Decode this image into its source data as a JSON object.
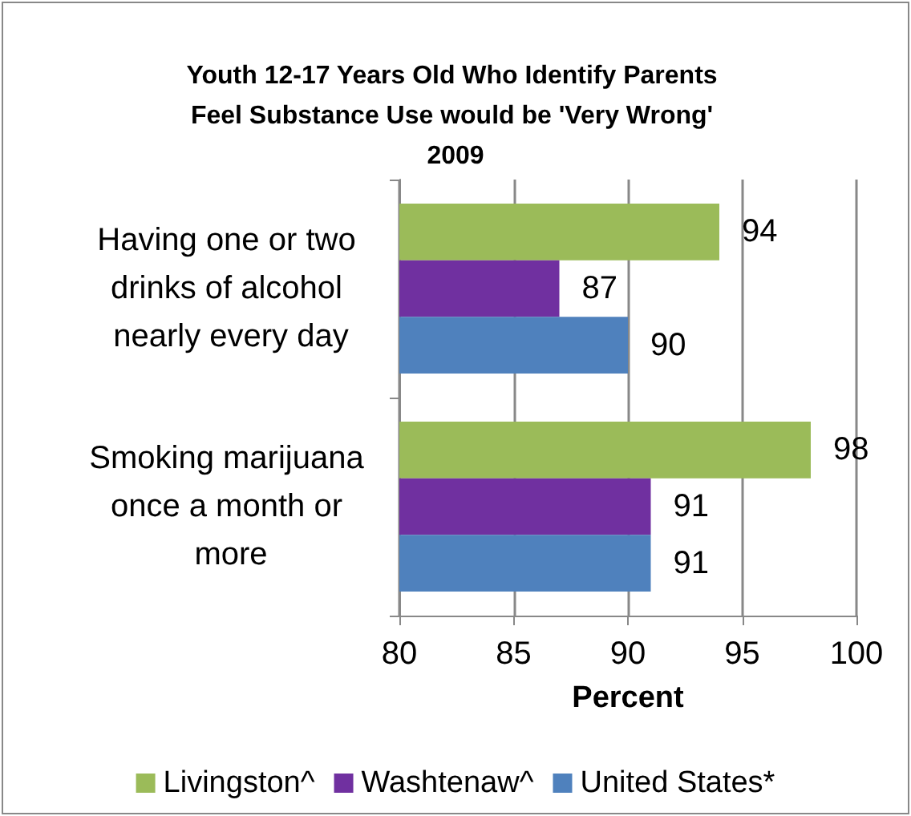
{
  "chart_data": {
    "type": "bar",
    "orientation": "horizontal",
    "title": "Youth 12-17 Years Old Who Identify Parents Feel Substance Use would be 'Very Wrong' 2009",
    "xlabel": "Percent",
    "categories": [
      "Having one or two drinks of alcohol nearly every day",
      "Smoking marijuana once a month or more"
    ],
    "series": [
      {
        "name": "Livingston^",
        "color": "#9bbb59",
        "values": [
          94,
          98
        ]
      },
      {
        "name": "Washtenaw^",
        "color": "#7030a0",
        "values": [
          87,
          91
        ]
      },
      {
        "name": "United States*",
        "color": "#4f81bd",
        "values": [
          90,
          91
        ]
      }
    ],
    "xlim": [
      80,
      100
    ],
    "xticks": [
      80,
      85,
      90,
      95,
      100
    ],
    "grid": "x",
    "legend": "bottom",
    "data_labels": true
  }
}
